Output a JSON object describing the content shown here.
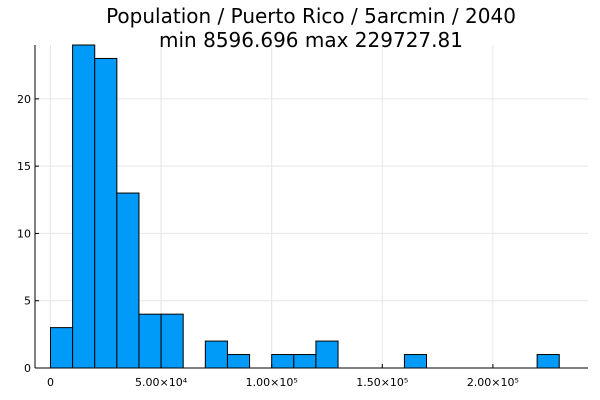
{
  "chart_data": {
    "type": "bar",
    "subtype": "histogram",
    "title": "Population / Puerto Rico / 5arcmin / 2040",
    "subtitle": "min 8596.696  max 229727.81",
    "xlabel": "",
    "ylabel": "",
    "bin_width": 10000,
    "bins": [
      {
        "start": 0,
        "end": 10000,
        "count": 3
      },
      {
        "start": 10000,
        "end": 20000,
        "count": 24
      },
      {
        "start": 20000,
        "end": 30000,
        "count": 23
      },
      {
        "start": 30000,
        "end": 40000,
        "count": 13
      },
      {
        "start": 40000,
        "end": 50000,
        "count": 4
      },
      {
        "start": 50000,
        "end": 60000,
        "count": 4
      },
      {
        "start": 60000,
        "end": 70000,
        "count": 0
      },
      {
        "start": 70000,
        "end": 80000,
        "count": 2
      },
      {
        "start": 80000,
        "end": 90000,
        "count": 1
      },
      {
        "start": 90000,
        "end": 100000,
        "count": 0
      },
      {
        "start": 100000,
        "end": 110000,
        "count": 1
      },
      {
        "start": 110000,
        "end": 120000,
        "count": 1
      },
      {
        "start": 120000,
        "end": 130000,
        "count": 2
      },
      {
        "start": 130000,
        "end": 140000,
        "count": 0
      },
      {
        "start": 140000,
        "end": 150000,
        "count": 0
      },
      {
        "start": 150000,
        "end": 160000,
        "count": 0
      },
      {
        "start": 160000,
        "end": 170000,
        "count": 1
      },
      {
        "start": 170000,
        "end": 180000,
        "count": 0
      },
      {
        "start": 180000,
        "end": 190000,
        "count": 0
      },
      {
        "start": 190000,
        "end": 200000,
        "count": 0
      },
      {
        "start": 200000,
        "end": 210000,
        "count": 0
      },
      {
        "start": 210000,
        "end": 220000,
        "count": 0
      },
      {
        "start": 220000,
        "end": 230000,
        "count": 1
      }
    ],
    "xlim": [
      -7000,
      243000
    ],
    "ylim": [
      0,
      24
    ],
    "x_ticks": [
      {
        "value": 0,
        "label": "0"
      },
      {
        "value": 50000,
        "label": "5.00×10⁴"
      },
      {
        "value": 100000,
        "label": "1.00×10⁵"
      },
      {
        "value": 150000,
        "label": "1.50×10⁵"
      },
      {
        "value": 200000,
        "label": "2.00×10⁵"
      }
    ],
    "y_ticks": [
      {
        "value": 0,
        "label": "0"
      },
      {
        "value": 5,
        "label": "5"
      },
      {
        "value": 10,
        "label": "10"
      },
      {
        "value": 15,
        "label": "15"
      },
      {
        "value": 20,
        "label": "20"
      }
    ],
    "grid": true,
    "legend": "none",
    "colors": {
      "bar_fill": "#009af9",
      "bar_stroke": "#000000",
      "grid": "#e6e6e6"
    }
  }
}
